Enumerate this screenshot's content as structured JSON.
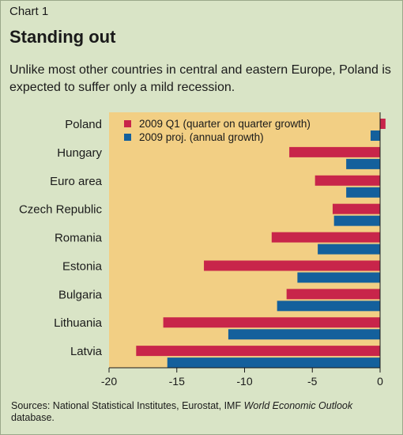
{
  "header": {
    "chart_number": "Chart 1",
    "title": "Standing out",
    "subtitle": "Unlike most other countries in central and eastern Europe, Poland is expected to suffer only a mild recession."
  },
  "source": {
    "prefix": "Sources: National Statistical Institutes, Eurostat, IMF ",
    "italic": "World Economic Outlook",
    "suffix": " database."
  },
  "colors": {
    "background": "#d9e4c6",
    "plot_background": "#f2cf84",
    "series_q1": "#c8254a",
    "series_proj": "#14609c"
  },
  "chart_data": {
    "type": "bar",
    "orientation": "horizontal",
    "categories": [
      "Poland",
      "Hungary",
      "Euro area",
      "Czech Republic",
      "Romania",
      "Estonia",
      "Bulgaria",
      "Lithuania",
      "Latvia"
    ],
    "series": [
      {
        "name": "2009 Q1 (quarter on quarter growth)",
        "values": [
          0.4,
          -6.7,
          -4.8,
          -3.5,
          -8.0,
          -13.0,
          -6.9,
          -16.0,
          -18.0
        ]
      },
      {
        "name": "2009 proj. (annual growth)",
        "values": [
          -0.7,
          -2.5,
          -2.5,
          -3.4,
          -4.6,
          -6.1,
          -7.6,
          -11.2,
          -15.7
        ]
      }
    ],
    "xlim": [
      -20,
      0
    ],
    "xticks": [
      -20,
      -15,
      -10,
      -5,
      0
    ],
    "legend_position": "top-left"
  }
}
